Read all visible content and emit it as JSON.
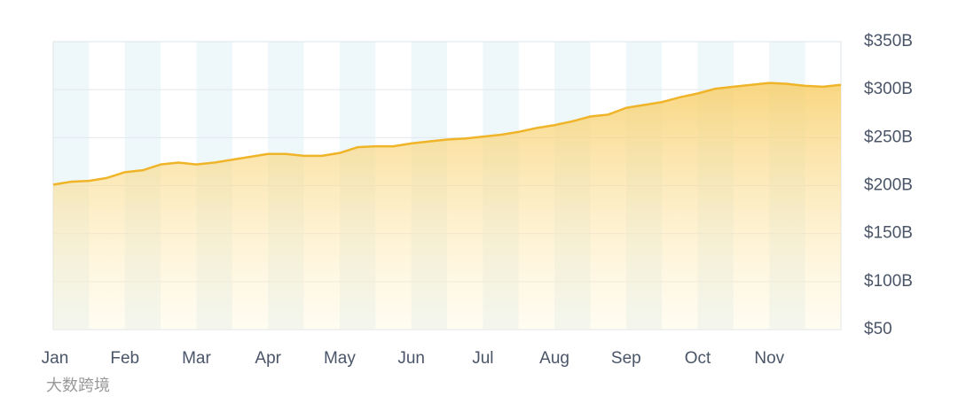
{
  "chart_data": {
    "type": "area",
    "x": [
      0,
      0.25,
      0.5,
      0.75,
      1,
      1.25,
      1.5,
      1.75,
      2,
      2.25,
      2.5,
      2.75,
      3,
      3.25,
      3.5,
      3.75,
      4,
      4.25,
      4.5,
      4.75,
      5,
      5.25,
      5.5,
      5.75,
      6,
      6.25,
      6.5,
      6.75,
      7,
      7.25,
      7.5,
      7.75,
      8,
      8.25,
      8.5,
      8.75,
      9,
      9.25,
      9.5,
      9.75,
      10,
      10.25,
      10.5,
      10.75,
      11
    ],
    "values": [
      201,
      204,
      205,
      208,
      214,
      216,
      222,
      224,
      222,
      224,
      227,
      230,
      233,
      233,
      231,
      231,
      234,
      240,
      241,
      241,
      244,
      246,
      248,
      249,
      251,
      253,
      256,
      260,
      263,
      267,
      272,
      274,
      281,
      284,
      287,
      292,
      296,
      301,
      303,
      305,
      307,
      306,
      304,
      303,
      305
    ],
    "color": "#f0b429",
    "xlim": [
      0,
      11
    ],
    "xticks": [
      {
        "value": 0,
        "label": "Jan"
      },
      {
        "value": 1,
        "label": "Feb"
      },
      {
        "value": 2,
        "label": "Mar"
      },
      {
        "value": 3,
        "label": "Apr"
      },
      {
        "value": 4,
        "label": "May"
      },
      {
        "value": 5,
        "label": "Jun"
      },
      {
        "value": 6,
        "label": "Jul"
      },
      {
        "value": 7,
        "label": "Aug"
      },
      {
        "value": 8,
        "label": "Sep"
      },
      {
        "value": 9,
        "label": "Oct"
      },
      {
        "value": 10,
        "label": "Nov"
      }
    ],
    "ylim": [
      50,
      350
    ],
    "yticks": [
      {
        "value": 50,
        "label": "$50"
      },
      {
        "value": 100,
        "label": "$100B"
      },
      {
        "value": 150,
        "label": "$150B"
      },
      {
        "value": 200,
        "label": "$200B"
      },
      {
        "value": 250,
        "label": "$250B"
      },
      {
        "value": 300,
        "label": "$300B"
      },
      {
        "value": 350,
        "label": "$350B"
      }
    ],
    "grid": true
  },
  "watermark": "大数跨境"
}
